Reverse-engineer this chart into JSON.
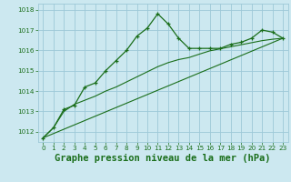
{
  "xlabel": "Graphe pression niveau de la mer (hPa)",
  "bg_color": "#cce8f0",
  "grid_color": "#9dc8d8",
  "line_color": "#1a6e1a",
  "marker_color": "#1a6e1a",
  "xlim": [
    -0.5,
    23.5
  ],
  "ylim": [
    1011.5,
    1018.3
  ],
  "yticks": [
    1012,
    1013,
    1014,
    1015,
    1016,
    1017,
    1018
  ],
  "xticks": [
    0,
    1,
    2,
    3,
    4,
    5,
    6,
    7,
    8,
    9,
    10,
    11,
    12,
    13,
    14,
    15,
    16,
    17,
    18,
    19,
    20,
    21,
    22,
    23
  ],
  "series1_x": [
    0,
    1,
    2,
    3,
    4,
    5,
    6,
    7,
    8,
    9,
    10,
    11,
    12,
    13,
    14,
    15,
    16,
    17,
    18,
    19,
    20,
    21,
    22,
    23
  ],
  "series1_y": [
    1011.7,
    1012.2,
    1013.1,
    1013.3,
    1014.2,
    1014.4,
    1015.0,
    1015.5,
    1016.0,
    1016.7,
    1017.1,
    1017.8,
    1017.3,
    1016.6,
    1016.1,
    1016.1,
    1016.1,
    1016.1,
    1016.3,
    1016.4,
    1016.6,
    1017.0,
    1016.9,
    1016.6
  ],
  "series2_x": [
    0,
    23
  ],
  "series2_y": [
    1011.7,
    1016.6
  ],
  "series3_x": [
    0,
    1,
    2,
    3,
    4,
    5,
    6,
    7,
    8,
    9,
    10,
    11,
    12,
    13,
    14,
    15,
    16,
    17,
    18,
    19,
    20,
    21,
    22,
    23
  ],
  "series3_y": [
    1011.7,
    1012.2,
    1013.0,
    1013.35,
    1013.55,
    1013.75,
    1014.0,
    1014.2,
    1014.45,
    1014.7,
    1014.95,
    1015.2,
    1015.4,
    1015.55,
    1015.65,
    1015.82,
    1015.98,
    1016.08,
    1016.18,
    1016.28,
    1016.38,
    1016.48,
    1016.55,
    1016.6
  ],
  "xlabel_fontsize": 7.5,
  "tick_fontsize": 5.2
}
